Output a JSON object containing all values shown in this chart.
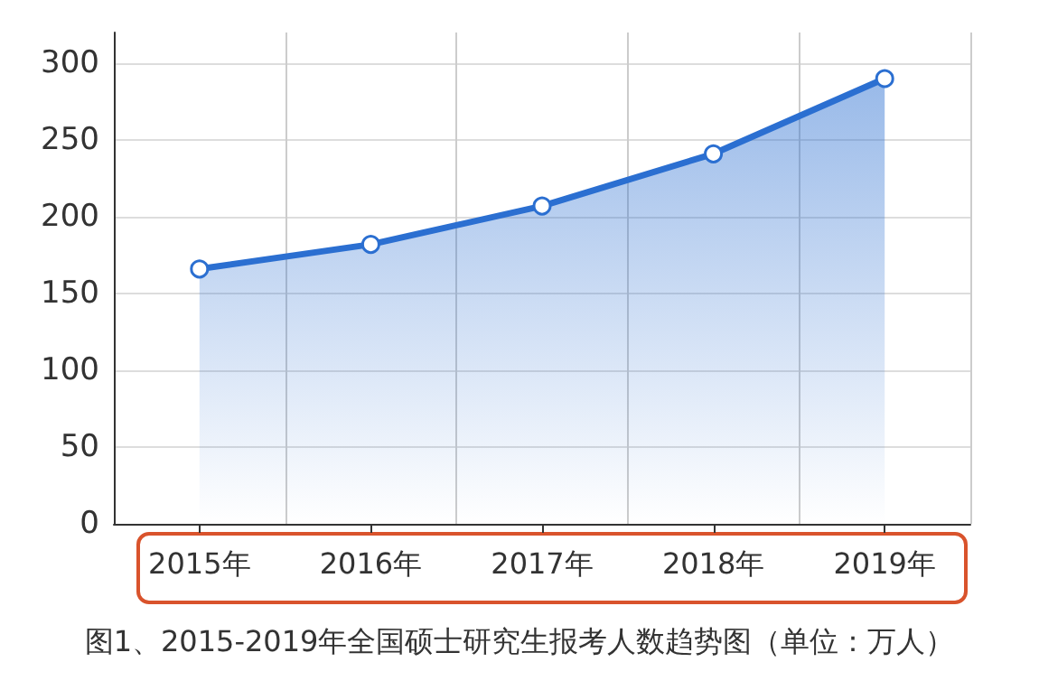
{
  "chart_data": {
    "type": "area",
    "title": "图1、2015-2019年全国硕士研究生报考人数趋势图（单位：万人）",
    "categories": [
      "2015年",
      "2016年",
      "2017年",
      "2018年",
      "2019年"
    ],
    "series": [
      {
        "color": "#2b6fd1",
        "values": [
          166,
          182,
          207,
          241,
          290
        ]
      }
    ],
    "ylim": [
      0,
      320
    ],
    "yticks": [
      0,
      50,
      100,
      150,
      200,
      250,
      300
    ],
    "grid": true,
    "marker": "circle",
    "line_style": "solid"
  }
}
